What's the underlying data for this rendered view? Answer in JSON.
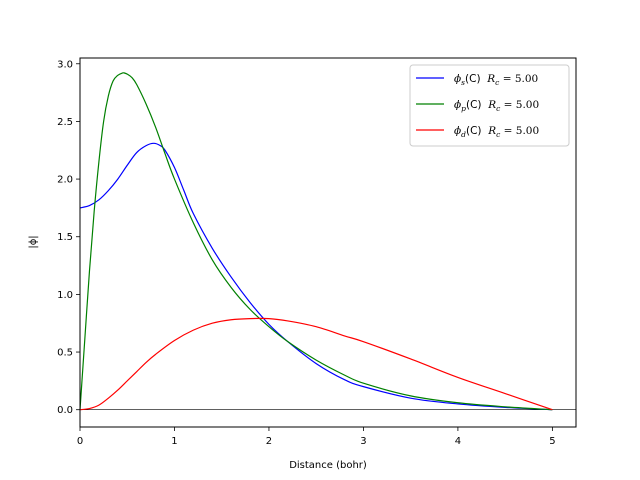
{
  "chart_data": {
    "type": "line",
    "xlabel": "Distance (bohr)",
    "ylabel": "|ϕ|",
    "xlim": [
      0,
      5.25
    ],
    "ylim": [
      -0.15,
      3.05
    ],
    "xticks": [
      "0",
      "1",
      "2",
      "3",
      "4",
      "5"
    ],
    "yticks": [
      "0.0",
      "0.5",
      "1.0",
      "1.5",
      "2.0",
      "2.5",
      "3.0"
    ],
    "grid": false,
    "legend_position": "top-right",
    "zero_line": true,
    "series": [
      {
        "name": "ϕs(C)  Rc = 5.00",
        "legend": {
          "sub": "s",
          "elem": "(C)",
          "rc": "5.00"
        },
        "color": "#0000ff",
        "x": [
          0,
          0.1,
          0.2,
          0.3,
          0.4,
          0.5,
          0.6,
          0.7,
          0.78,
          0.85,
          0.9,
          1.0,
          1.1,
          1.2,
          1.4,
          1.6,
          1.8,
          2.0,
          2.2,
          2.5,
          2.8,
          3.0,
          3.5,
          4.0,
          4.5,
          5.0
        ],
        "y": [
          1.75,
          1.77,
          1.82,
          1.9,
          2.0,
          2.12,
          2.23,
          2.29,
          2.31,
          2.29,
          2.25,
          2.1,
          1.9,
          1.7,
          1.4,
          1.15,
          0.93,
          0.74,
          0.59,
          0.4,
          0.26,
          0.2,
          0.1,
          0.05,
          0.02,
          0.0
        ]
      },
      {
        "name": "ϕp(C)  Rc = 5.00",
        "legend": {
          "sub": "p",
          "elem": "(C)",
          "rc": "5.00"
        },
        "color": "#008000",
        "x": [
          0,
          0.05,
          0.1,
          0.15,
          0.2,
          0.25,
          0.3,
          0.35,
          0.4,
          0.45,
          0.47,
          0.5,
          0.55,
          0.6,
          0.7,
          0.8,
          0.9,
          1.0,
          1.2,
          1.4,
          1.6,
          1.8,
          2.0,
          2.2,
          2.5,
          2.8,
          3.0,
          3.5,
          4.0,
          4.5,
          5.0
        ],
        "y": [
          0.0,
          0.6,
          1.2,
          1.72,
          2.15,
          2.5,
          2.72,
          2.85,
          2.9,
          2.92,
          2.92,
          2.91,
          2.88,
          2.82,
          2.65,
          2.45,
          2.22,
          2.0,
          1.62,
          1.3,
          1.06,
          0.87,
          0.72,
          0.59,
          0.43,
          0.3,
          0.23,
          0.12,
          0.06,
          0.025,
          0.0
        ]
      },
      {
        "name": "ϕd(C)  Rc = 5.00",
        "legend": {
          "sub": "d",
          "elem": "(C)",
          "rc": "5.00"
        },
        "color": "#ff0000",
        "x": [
          0,
          0.1,
          0.2,
          0.3,
          0.4,
          0.5,
          0.6,
          0.7,
          0.8,
          1.0,
          1.2,
          1.4,
          1.6,
          1.8,
          2.0,
          2.2,
          2.5,
          2.8,
          3.0,
          3.5,
          4.0,
          4.5,
          5.0
        ],
        "y": [
          0.0,
          0.01,
          0.04,
          0.1,
          0.17,
          0.25,
          0.33,
          0.41,
          0.48,
          0.6,
          0.69,
          0.75,
          0.78,
          0.79,
          0.79,
          0.77,
          0.72,
          0.64,
          0.59,
          0.44,
          0.28,
          0.14,
          0.0
        ]
      }
    ]
  }
}
